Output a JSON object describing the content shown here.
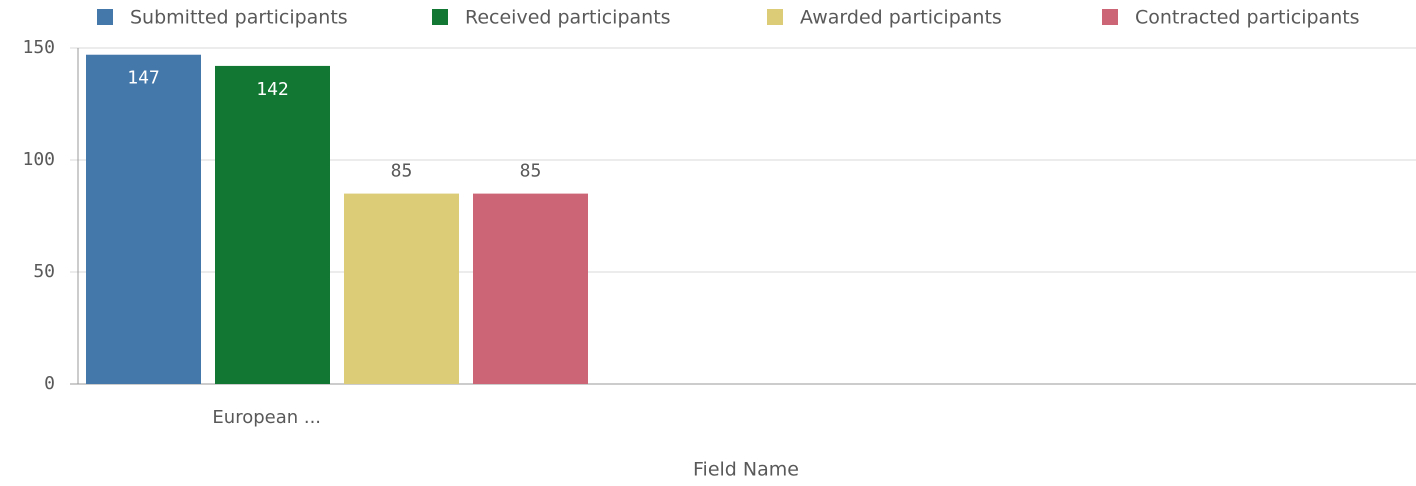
{
  "chart_data": {
    "type": "bar",
    "categories": [
      "European ..."
    ],
    "series": [
      {
        "name": "Submitted participants",
        "color": "#4477aa",
        "values": [
          147
        ]
      },
      {
        "name": "Received participants",
        "color": "#117733",
        "values": [
          142
        ]
      },
      {
        "name": "Awarded participants",
        "color": "#ddcc77",
        "values": [
          85
        ]
      },
      {
        "name": "Contracted participants",
        "color": "#cc6677",
        "values": [
          85
        ]
      }
    ],
    "x_label": "Field Name",
    "ylim": [
      0,
      150
    ],
    "yticks": [
      0,
      50,
      100,
      150
    ],
    "grid": true,
    "legend": "top"
  }
}
